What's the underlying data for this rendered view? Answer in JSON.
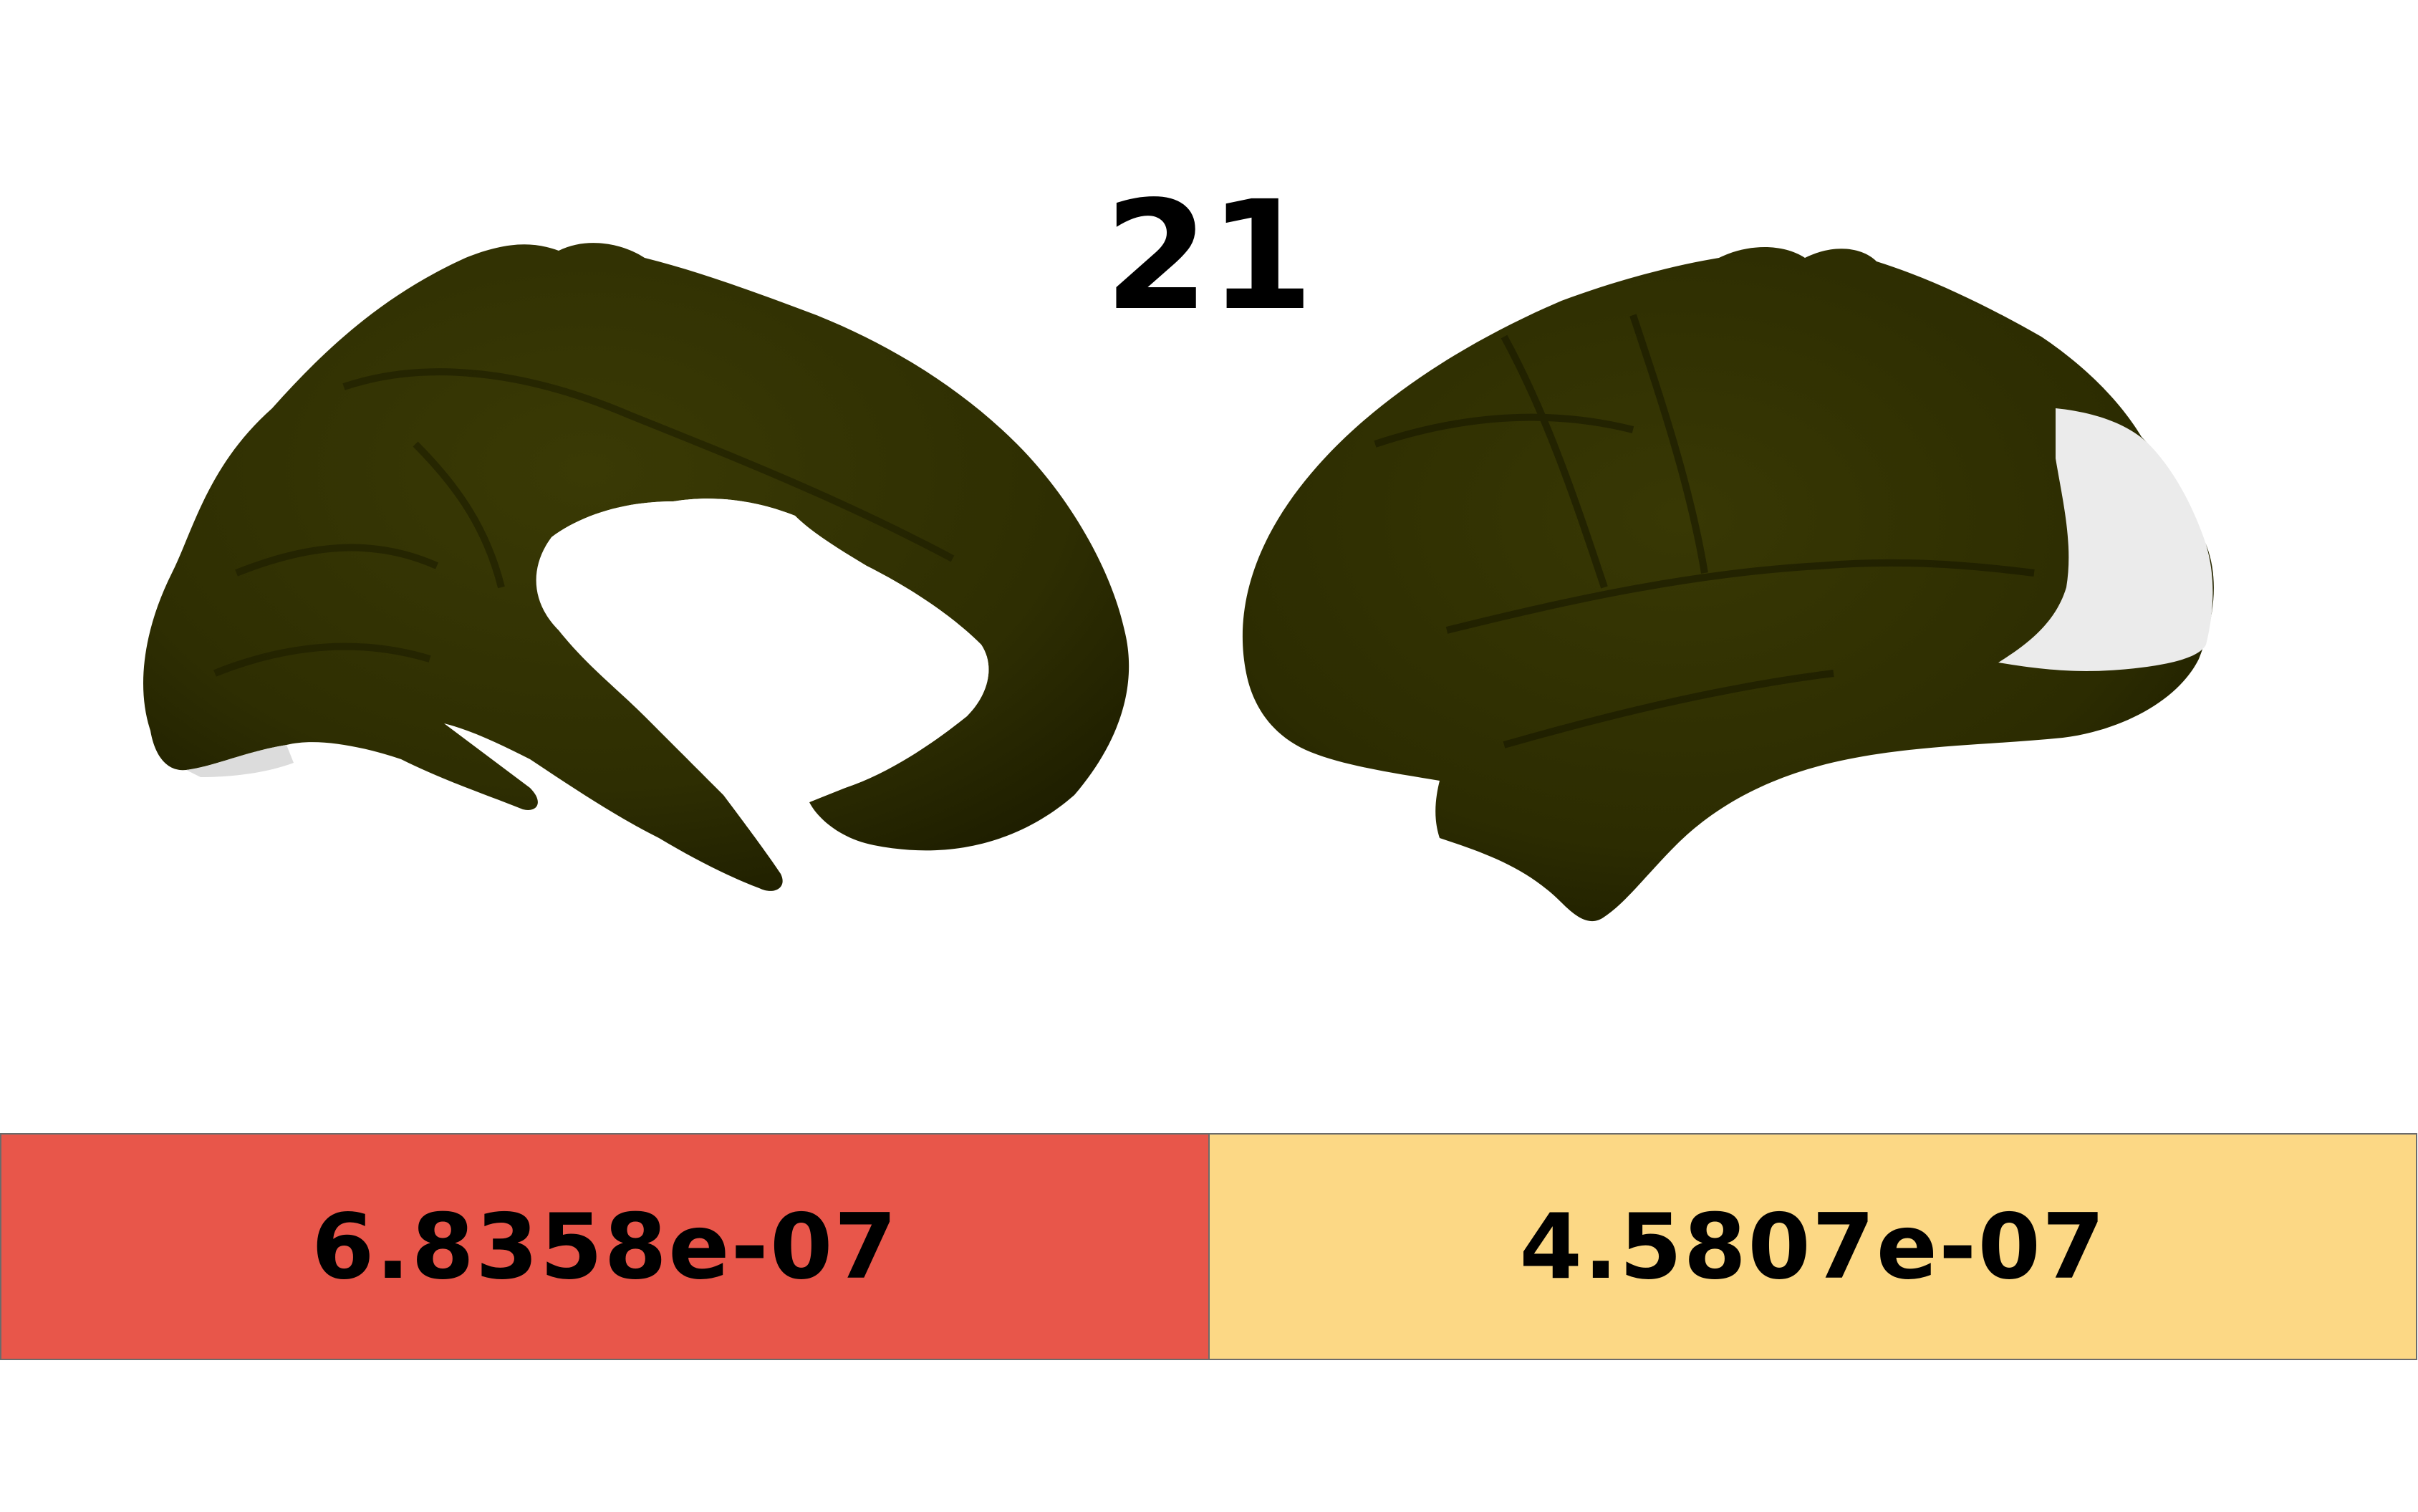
{
  "title": "21",
  "colors": {
    "cortex": "#333300",
    "medial_wall": "#ffffff",
    "highlight_region": "#e9e9e9"
  },
  "brain_views": [
    {
      "hemisphere_view": "medial"
    },
    {
      "hemisphere_view": "lateral"
    }
  ],
  "value_bars": [
    {
      "label": "6.8358e-07",
      "color": "#e8564a"
    },
    {
      "label": "4.5807e-07",
      "color": "#fcd885"
    }
  ]
}
